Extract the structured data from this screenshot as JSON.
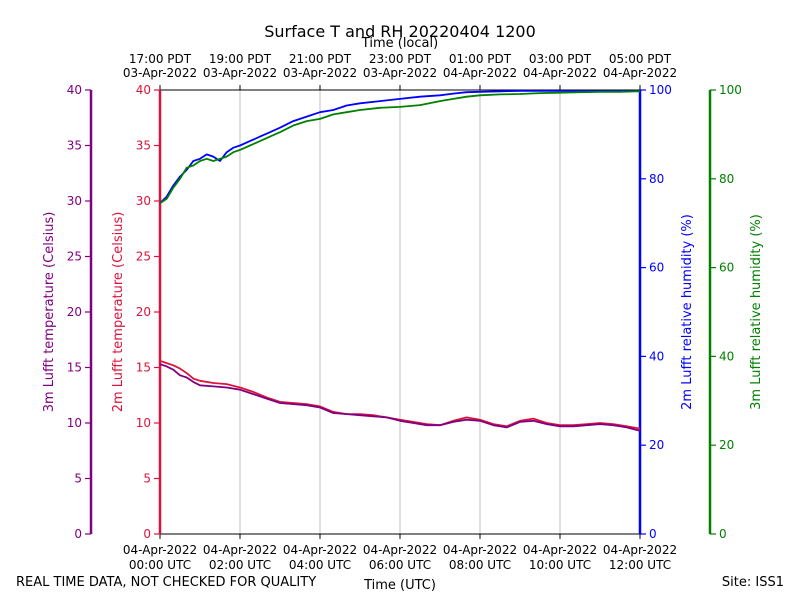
{
  "chart_data": {
    "type": "line",
    "title": "Surface T and RH 20220404 1200",
    "top_axis_label": "Time (local)",
    "xlabel": "Time (UTC)",
    "footer_left": "REAL TIME DATA, NOT CHECKED FOR QUALITY",
    "footer_right": "Site: ISS1",
    "x_ticks": [
      {
        "hour": 0,
        "utc": [
          "04-Apr-2022",
          "00:00 UTC"
        ],
        "local": [
          "17:00 PDT",
          "03-Apr-2022"
        ]
      },
      {
        "hour": 2,
        "utc": [
          "04-Apr-2022",
          "02:00 UTC"
        ],
        "local": [
          "19:00 PDT",
          "03-Apr-2022"
        ]
      },
      {
        "hour": 4,
        "utc": [
          "04-Apr-2022",
          "04:00 UTC"
        ],
        "local": [
          "21:00 PDT",
          "03-Apr-2022"
        ]
      },
      {
        "hour": 6,
        "utc": [
          "04-Apr-2022",
          "06:00 UTC"
        ],
        "local": [
          "23:00 PDT",
          "03-Apr-2022"
        ]
      },
      {
        "hour": 8,
        "utc": [
          "04-Apr-2022",
          "08:00 UTC"
        ],
        "local": [
          "01:00 PDT",
          "04-Apr-2022"
        ]
      },
      {
        "hour": 10,
        "utc": [
          "04-Apr-2022",
          "10:00 UTC"
        ],
        "local": [
          "03:00 PDT",
          "04-Apr-2022"
        ]
      },
      {
        "hour": 12,
        "utc": [
          "04-Apr-2022",
          "12:00 UTC"
        ],
        "local": [
          "05:00 PDT",
          "04-Apr-2022"
        ]
      }
    ],
    "xlim_utc": [
      "04-Apr-2022 00:00 UTC",
      "04-Apr-2022 12:00 UTC"
    ],
    "grid": "vertical",
    "axes": [
      {
        "id": "t3m",
        "label": "3m Lufft temperature (Celsius)",
        "ylim": [
          0,
          40
        ],
        "ticks": [
          0,
          5,
          10,
          15,
          20,
          25,
          30,
          35,
          40
        ],
        "color": "#800080",
        "side": "left-outer"
      },
      {
        "id": "t2m",
        "label": "2m Lufft temperature (Celsius)",
        "ylim": [
          0,
          40
        ],
        "ticks": [
          0,
          5,
          10,
          15,
          20,
          25,
          30,
          35,
          40
        ],
        "color": "#dc143c",
        "side": "left-inner"
      },
      {
        "id": "rh2m",
        "label": "2m Lufft relative humidity (%)",
        "ylim": [
          0,
          100
        ],
        "ticks": [
          0,
          20,
          40,
          60,
          80,
          100
        ],
        "color": "#0000ff",
        "side": "right-inner"
      },
      {
        "id": "rh3m",
        "label": "3m Lufft relative humidity (%)",
        "ylim": [
          0,
          100
        ],
        "ticks": [
          0,
          20,
          40,
          60,
          80,
          100
        ],
        "color": "#008000",
        "side": "right-outer"
      }
    ],
    "series": [
      {
        "id": "rh2m-line",
        "axis": "rh2m",
        "color": "#0000ff",
        "x": [
          "00:00",
          "00:10",
          "00:20",
          "00:30",
          "00:40",
          "00:50",
          "01:00",
          "01:10",
          "01:20",
          "01:30",
          "01:40",
          "01:50",
          "02:00",
          "02:15",
          "02:30",
          "02:45",
          "03:00",
          "03:20",
          "03:40",
          "04:00",
          "04:20",
          "04:40",
          "05:00",
          "05:30",
          "06:00",
          "06:30",
          "07:00",
          "07:20",
          "07:40",
          "08:00",
          "08:30",
          "09:00",
          "09:30",
          "10:00",
          "10:30",
          "11:00",
          "11:30",
          "12:00"
        ],
        "y": [
          74.5,
          76,
          78.5,
          80.5,
          82,
          84,
          84.5,
          85.5,
          85,
          84,
          86,
          87,
          87.5,
          88.5,
          89.5,
          90.5,
          91.5,
          93,
          94,
          95,
          95.5,
          96.5,
          97,
          97.5,
          98,
          98.5,
          98.8,
          99.2,
          99.5,
          99.6,
          99.7,
          99.8,
          99.8,
          99.8,
          99.8,
          99.8,
          99.8,
          99.8
        ]
      },
      {
        "id": "rh3m-line",
        "axis": "rh3m",
        "color": "#008000",
        "x": [
          "00:00",
          "00:10",
          "00:20",
          "00:30",
          "00:40",
          "00:50",
          "01:00",
          "01:10",
          "01:20",
          "01:30",
          "01:40",
          "01:50",
          "02:00",
          "02:15",
          "02:30",
          "02:45",
          "03:00",
          "03:20",
          "03:40",
          "04:00",
          "04:20",
          "04:40",
          "05:00",
          "05:30",
          "06:00",
          "06:30",
          "07:00",
          "07:20",
          "07:40",
          "08:00",
          "08:30",
          "09:00",
          "09:30",
          "10:00",
          "10:30",
          "11:00",
          "11:30",
          "12:00"
        ],
        "y": [
          74.5,
          75.5,
          78,
          80,
          82.5,
          83,
          84,
          84.5,
          84,
          84.5,
          85,
          86,
          86.5,
          87.5,
          88.5,
          89.5,
          90.5,
          92,
          93,
          93.5,
          94.5,
          95,
          95.5,
          96,
          96.2,
          96.6,
          97.5,
          98,
          98.5,
          98.8,
          99,
          99.1,
          99.3,
          99.4,
          99.5,
          99.6,
          99.6,
          99.7
        ]
      },
      {
        "id": "t2m-line",
        "axis": "t2m",
        "color": "#dc143c",
        "x": [
          "00:00",
          "00:10",
          "00:20",
          "00:30",
          "00:40",
          "00:50",
          "01:00",
          "01:20",
          "01:40",
          "02:00",
          "02:20",
          "02:40",
          "03:00",
          "03:20",
          "03:40",
          "04:00",
          "04:20",
          "04:40",
          "05:00",
          "05:20",
          "05:40",
          "06:00",
          "06:20",
          "06:40",
          "07:00",
          "07:20",
          "07:40",
          "08:00",
          "08:20",
          "08:40",
          "09:00",
          "09:20",
          "09:40",
          "10:00",
          "10:20",
          "10:40",
          "11:00",
          "11:20",
          "11:40",
          "12:00"
        ],
        "y": [
          15.6,
          15.4,
          15.2,
          14.9,
          14.5,
          14.0,
          13.8,
          13.6,
          13.5,
          13.2,
          12.8,
          12.3,
          11.9,
          11.8,
          11.7,
          11.5,
          11.0,
          10.8,
          10.8,
          10.7,
          10.5,
          10.3,
          10.1,
          9.9,
          9.8,
          10.2,
          10.5,
          10.3,
          9.9,
          9.7,
          10.2,
          10.4,
          10.0,
          9.8,
          9.8,
          9.9,
          10.0,
          9.9,
          9.7,
          9.5
        ]
      },
      {
        "id": "t3m-line",
        "axis": "t3m",
        "color": "#800080",
        "x": [
          "00:00",
          "00:10",
          "00:20",
          "00:30",
          "00:40",
          "00:50",
          "01:00",
          "01:20",
          "01:40",
          "02:00",
          "02:20",
          "02:40",
          "03:00",
          "03:20",
          "03:40",
          "04:00",
          "04:20",
          "04:40",
          "05:00",
          "05:20",
          "05:40",
          "06:00",
          "06:20",
          "06:40",
          "07:00",
          "07:20",
          "07:40",
          "08:00",
          "08:20",
          "08:40",
          "09:00",
          "09:20",
          "09:40",
          "10:00",
          "10:20",
          "10:40",
          "11:00",
          "11:20",
          "11:40",
          "12:00"
        ],
        "y": [
          15.3,
          15.1,
          14.8,
          14.3,
          14.1,
          13.7,
          13.4,
          13.3,
          13.2,
          13.0,
          12.6,
          12.2,
          11.8,
          11.7,
          11.6,
          11.4,
          10.9,
          10.8,
          10.7,
          10.6,
          10.5,
          10.2,
          10.0,
          9.8,
          9.8,
          10.1,
          10.3,
          10.2,
          9.8,
          9.6,
          10.1,
          10.2,
          9.9,
          9.7,
          9.7,
          9.8,
          9.9,
          9.8,
          9.6,
          9.3
        ]
      }
    ]
  }
}
